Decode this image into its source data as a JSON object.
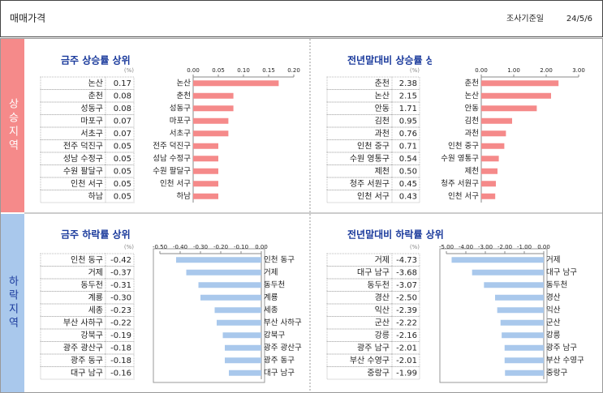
{
  "header": {
    "title": "매매가격",
    "date_label": "조사기준일",
    "date": "24/5/6"
  },
  "sections": [
    "상승지역",
    "하락지역"
  ],
  "chart_data": [
    {
      "type": "bar",
      "orientation": "horizontal",
      "title": "금주 상승률 상위",
      "unit": "(%)",
      "color": "#f58a8a",
      "categories": [
        "논산",
        "춘천",
        "성동구",
        "마포구",
        "서초구",
        "전주 덕진구",
        "성남 수정구",
        "수원 팔달구",
        "인천 서구",
        "하남"
      ],
      "values": [
        0.17,
        0.08,
        0.08,
        0.07,
        0.07,
        0.05,
        0.05,
        0.05,
        0.05,
        0.05
      ],
      "value_labels": [
        "0.17",
        "0.08",
        "0.08",
        "0.07",
        "0.07",
        "0.05",
        "0.05",
        "0.05",
        "0.05",
        "0.05"
      ],
      "xlim": [
        0,
        0.2
      ],
      "xticks": [
        {
          "value": 0,
          "label": "0.00"
        },
        {
          "value": 0.05,
          "label": "0.05"
        },
        {
          "value": 0.1,
          "label": "0.10"
        },
        {
          "value": 0.15,
          "label": "0.15"
        },
        {
          "value": 0.2,
          "label": "0.20"
        }
      ]
    },
    {
      "type": "bar",
      "orientation": "horizontal",
      "title": "전년말대비 상승률 상위",
      "unit": "(%)",
      "color": "#f58a8a",
      "categories": [
        "춘천",
        "논산",
        "안동",
        "김천",
        "과천",
        "인천 중구",
        "수원 영통구",
        "제천",
        "청주 서원구",
        "인천 서구"
      ],
      "values": [
        2.38,
        2.15,
        1.71,
        0.95,
        0.76,
        0.71,
        0.54,
        0.5,
        0.45,
        0.43
      ],
      "value_labels": [
        "2.38",
        "2.15",
        "1.71",
        "0.95",
        "0.76",
        "0.71",
        "0.54",
        "0.50",
        "0.45",
        "0.43"
      ],
      "xlim": [
        0,
        3
      ],
      "xticks": [
        {
          "value": 0,
          "label": "0.00"
        },
        {
          "value": 1,
          "label": "1.00"
        },
        {
          "value": 2,
          "label": "2.00"
        },
        {
          "value": 3,
          "label": "3.00"
        }
      ]
    },
    {
      "type": "bar",
      "orientation": "horizontal",
      "title": "금주 하락률 상위",
      "unit": "(%)",
      "color": "#a9c8ec",
      "categories": [
        "인천 동구",
        "거제",
        "동두천",
        "계룡",
        "세종",
        "부산 사하구",
        "강북구",
        "광주 광산구",
        "광주 동구",
        "대구 남구"
      ],
      "values": [
        -0.42,
        -0.37,
        -0.31,
        -0.3,
        -0.23,
        -0.22,
        -0.19,
        -0.18,
        -0.18,
        -0.16
      ],
      "value_labels": [
        "-0.42",
        "-0.37",
        "-0.31",
        "-0.30",
        "-0.23",
        "-0.22",
        "-0.19",
        "-0.18",
        "-0.18",
        "-0.16"
      ],
      "xlim": [
        -0.5,
        0
      ],
      "xticks": [
        {
          "value": -0.5,
          "label": "-0.50"
        },
        {
          "value": -0.4,
          "label": "-0.40"
        },
        {
          "value": -0.3,
          "label": "-0.30"
        },
        {
          "value": -0.2,
          "label": "-0.20"
        },
        {
          "value": -0.1,
          "label": "-0.10"
        },
        {
          "value": 0,
          "label": "0.00"
        }
      ]
    },
    {
      "type": "bar",
      "orientation": "horizontal",
      "title": "전년말대비 하락률 상위",
      "unit": "(%)",
      "color": "#a9c8ec",
      "categories": [
        "거제",
        "대구 남구",
        "동두천",
        "경산",
        "익산",
        "군산",
        "강릉",
        "광주 남구",
        "부산 수영구",
        "중랑구"
      ],
      "values": [
        -4.73,
        -3.68,
        -3.07,
        -2.5,
        -2.39,
        -2.22,
        -2.16,
        -2.01,
        -2.01,
        -1.99
      ],
      "value_labels": [
        "-4.73",
        "-3.68",
        "-3.07",
        "-2.50",
        "-2.39",
        "-2.22",
        "-2.16",
        "-2.01",
        "-2.01",
        "-1.99"
      ],
      "xlim": [
        -5,
        0
      ],
      "xticks": [
        {
          "value": -5,
          "label": "-5.00"
        },
        {
          "value": -4,
          "label": "-4.00"
        },
        {
          "value": -3,
          "label": "-3.00"
        },
        {
          "value": -2,
          "label": "-2.00"
        },
        {
          "value": -1,
          "label": "-1.00"
        },
        {
          "value": 0,
          "label": "0.00"
        }
      ]
    }
  ]
}
